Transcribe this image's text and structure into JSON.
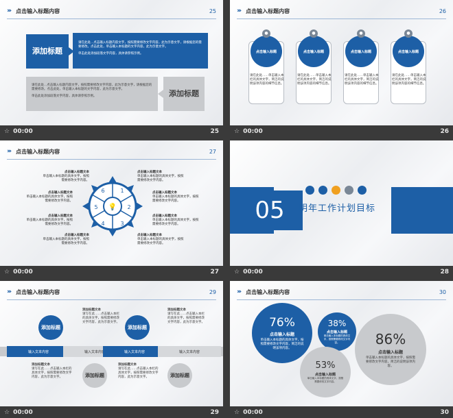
{
  "header_title": "点击输入标题内容",
  "slides": [
    {
      "num": "25",
      "caption_time": "00:00",
      "caption_num": "25",
      "box1": "添加标题",
      "box2": "添加标题",
      "band1_text": "请在此处...点击输入标题内容文字，按照需要修改文字内容，此为示意文字，请根据您的需要修改。点击此处，单击输入本标题的文字内容，此为示意文字。",
      "band1_small": "单击此处添加段落文字内容，具体请参照示例。",
      "band2_text": "请在此处...点击输入标题内容文字，按照需要修改文字内容，此为示意文字，请根据您的需要修改。点击此处，单击输入本标题的文字内容，此为示意文字。",
      "band2_small": "单击此处添加段落文字内容，具体请参照示例。"
    },
    {
      "num": "26",
      "caption_time": "00:00",
      "caption_num": "26",
      "cards": [
        {
          "title": "点击输入标题",
          "text": "请在此处……单击输入本栏的具体文字，简洁的说明该项内容的细节信息。"
        },
        {
          "title": "点击输入标题",
          "text": "请在此处……单击输入本栏的具体文字，简洁的说明该项内容的细节信息。"
        },
        {
          "title": "点击输入标题",
          "text": "请在此处……单击输入本栏的具体文字，简洁的说明该项内容的细节信息。"
        },
        {
          "title": "点击输入标题",
          "text": "请在此处……单击输入本栏的具体文字，简洁的说明该项内容的细节信息。"
        }
      ]
    },
    {
      "num": "27",
      "caption_time": "00:00",
      "caption_num": "27",
      "labels": [
        {
          "title": "点击输入标题文本",
          "text": "单击输入本标题的具体文字，按照需要修改文字内容。"
        },
        {
          "title": "点击输入标题文本",
          "text": "单击输入本标题的具体文字，按照需要修改文字内容。"
        },
        {
          "title": "点击输入标题文本",
          "text": "单击输入本标题的具体文字，按照需要修改文字内容。"
        },
        {
          "title": "点击输入标题文本",
          "text": "单击输入本标题的具体文字，按照需要修改文字内容。"
        },
        {
          "title": "点击输入标题文本",
          "text": "单击输入本标题的具体文字，按照需要修改文字内容。"
        },
        {
          "title": "点击输入标题文本",
          "text": "单击输入本标题的具体文字，按照需要修改文字内容。"
        },
        {
          "title": "点击输入标题文本",
          "text": "单击输入本标题的具体文字，按照需要修改文字内容。"
        },
        {
          "title": "点击输入标题文本",
          "text": "单击输入本标题的具体文字，按照需要修改文字内容。"
        }
      ],
      "segments": [
        "1",
        "2",
        "3",
        "4",
        "5",
        "6"
      ]
    },
    {
      "num": "28",
      "caption_time": "00:00",
      "caption_num": "28",
      "big_number": "05",
      "title": "明年工作计划目标"
    },
    {
      "num": "29",
      "caption_time": "00:00",
      "caption_num": "29",
      "circles": [
        "添加标题",
        "添加标题",
        "添加标题",
        "添加标题"
      ],
      "caps": [
        "输入文本内容",
        "输入文本内容",
        "输入文本内容",
        "输入文本内容"
      ],
      "blocks": [
        {
          "title": "添加标题文本",
          "text": "请写在此……点击输入本栏的具体文字，按照需要修改文字内容，此为示意文字。"
        },
        {
          "title": "添加标题文本",
          "text": "请写在此……点击输入本栏的具体文字，按照需要修改文字内容，此为示意文字。"
        },
        {
          "title": "添加标题文本",
          "text": "请写在此……点击输入本栏的具体文字，按照需要修改文字内容，此为示意文字。"
        },
        {
          "title": "添加标题文本",
          "text": "请写在此……点击输入本栏的具体文字，按照需要修改文字内容，此为示意文字。"
        }
      ]
    },
    {
      "num": "30",
      "caption_time": "00:00",
      "caption_num": "30",
      "stats": [
        {
          "pct": "76%",
          "title": "点击输入标题",
          "text": "单击输入本标题的具体文字，按照需要修改文字内容，简洁的说明该项内容。"
        },
        {
          "pct": "38%",
          "title": "点击输入标题",
          "text": "单击输入本标题的具体文字，按照需要修改文字内容。"
        },
        {
          "pct": "53%",
          "title": "点击输入标题",
          "text": "单击输入本标题的具体文字，按照需要修改文字内容。"
        },
        {
          "pct": "86%",
          "title": "点击输入标题",
          "text": "单击输入本标题的具体文字，按照需要修改文字内容，简洁的说明该项内容。"
        }
      ]
    }
  ],
  "caption_time": "00:00"
}
